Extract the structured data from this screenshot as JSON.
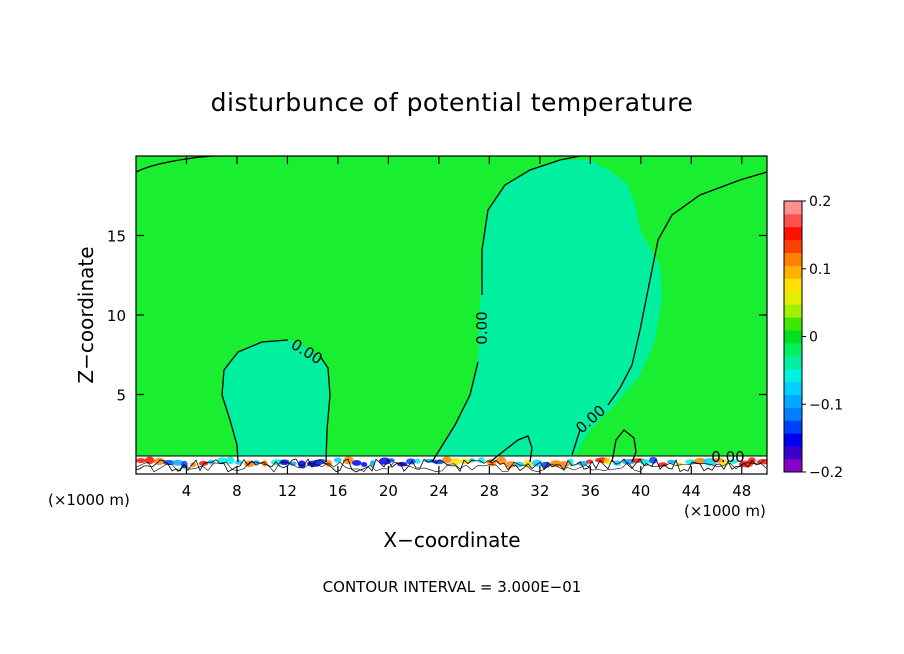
{
  "chart_data": {
    "type": "heatmap",
    "title": "disturbunce of potential temperature",
    "xlabel": "X−coordinate",
    "ylabel": "Z−coordinate",
    "x_unit_left": "(×1000 m)",
    "x_unit_right": "(×1000 m)",
    "xlim": [
      0,
      50
    ],
    "ylim": [
      0,
      20
    ],
    "x_ticks": [
      4,
      8,
      12,
      16,
      20,
      24,
      28,
      32,
      36,
      40,
      44,
      48
    ],
    "y_ticks": [
      5,
      10,
      15
    ],
    "contour_label": "0.00",
    "footer": "CONTOUR INTERVAL = 3.000E−01",
    "colorbar": {
      "range": [
        -0.2,
        0.2
      ],
      "tick_labels": [
        {
          "v": 0.2,
          "label": "0.2"
        },
        {
          "v": 0.1,
          "label": "0.1"
        },
        {
          "v": 0.0,
          "label": "0"
        },
        {
          "v": -0.1,
          "label": "−0.1"
        },
        {
          "v": -0.2,
          "label": "−0.2"
        }
      ],
      "colors": [
        "#8a00c8",
        "#3c00c8",
        "#0000f0",
        "#0040f8",
        "#0080ff",
        "#00a8ff",
        "#00d0ff",
        "#00f0e0",
        "#00f0a0",
        "#00f060",
        "#00e020",
        "#40e800",
        "#a0f000",
        "#e0f000",
        "#ffe000",
        "#ffb000",
        "#ff8000",
        "#ff4000",
        "#ff1000",
        "#ff5050",
        "#ff9090"
      ]
    },
    "background_color": "#19ee31",
    "near_zero_color": "#00f0a0"
  }
}
